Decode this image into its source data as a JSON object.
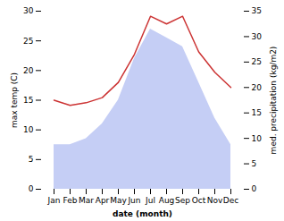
{
  "chart_data": {
    "type": "line",
    "xlabel": "date (month)",
    "ylabel": "max temp (C)",
    "y2label": "med. precipitation (kg/m2)",
    "categories": [
      "Jan",
      "Feb",
      "Mar",
      "Apr",
      "May",
      "Jun",
      "Jul",
      "Aug",
      "Sep",
      "Oct",
      "Nov",
      "Dec"
    ],
    "series": [
      {
        "type": "area",
        "color": "#c5cef5",
        "values": [
          7.5,
          7.5,
          8.5,
          11.0,
          15.0,
          22.0,
          27.0,
          25.5,
          24.0,
          18.0,
          12.0,
          7.5
        ]
      },
      {
        "type": "line",
        "axis": "y2",
        "color": "#cc3333",
        "values": [
          17.5,
          16.5,
          17.0,
          18.0,
          21.0,
          26.5,
          34.0,
          32.5,
          34.0,
          27.0,
          23.0,
          20.0
        ]
      }
    ],
    "ylim": [
      0,
      30
    ],
    "yticks": [
      0,
      5,
      10,
      15,
      20,
      25,
      30
    ],
    "y2lim": [
      0,
      35
    ],
    "y2ticks": [
      0,
      5,
      10,
      15,
      20,
      25,
      30,
      35
    ],
    "grid": false
  }
}
